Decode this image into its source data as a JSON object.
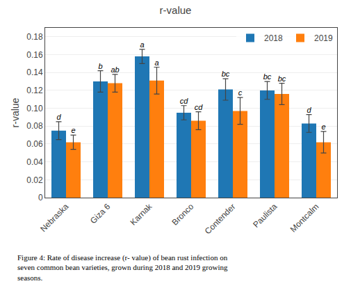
{
  "chart_data": {
    "type": "bar",
    "title": "r-value",
    "ylabel": "r-value",
    "categories": [
      "Nebraska",
      "Giza 6",
      "Karnak",
      "Bronco",
      "Contender",
      "Paulista",
      "Montcalm"
    ],
    "series": [
      {
        "name": "2018",
        "values": [
          0.075,
          0.13,
          0.158,
          0.095,
          0.121,
          0.12,
          0.083
        ],
        "errors": [
          0.01,
          0.012,
          0.008,
          0.008,
          0.012,
          0.01,
          0.01
        ],
        "annotations": [
          "d",
          "b",
          "a",
          "cd",
          "bc",
          "bc",
          "d"
        ]
      },
      {
        "name": "2019",
        "values": [
          0.062,
          0.128,
          0.131,
          0.086,
          0.097,
          0.116,
          0.062
        ],
        "errors": [
          0.008,
          0.01,
          0.015,
          0.01,
          0.015,
          0.012,
          0.012
        ],
        "annotations": [
          "e",
          "ab",
          "a",
          "cd",
          "c",
          "bc",
          "e"
        ]
      }
    ],
    "ylim": [
      0,
      0.19
    ],
    "yticks": [
      0,
      0.02,
      0.04,
      0.06,
      0.08,
      {
        "value": 0.1,
        "label": "0.10"
      },
      0.12,
      0.14,
      0.16,
      0.18
    ],
    "grid": true,
    "legend": "upper right",
    "caption": "Figure 4: Rate of disease increase (r- value) of bean rust infection on\nseven common bean varieties, grown during 2018 and 2019 growing\nseasons."
  }
}
